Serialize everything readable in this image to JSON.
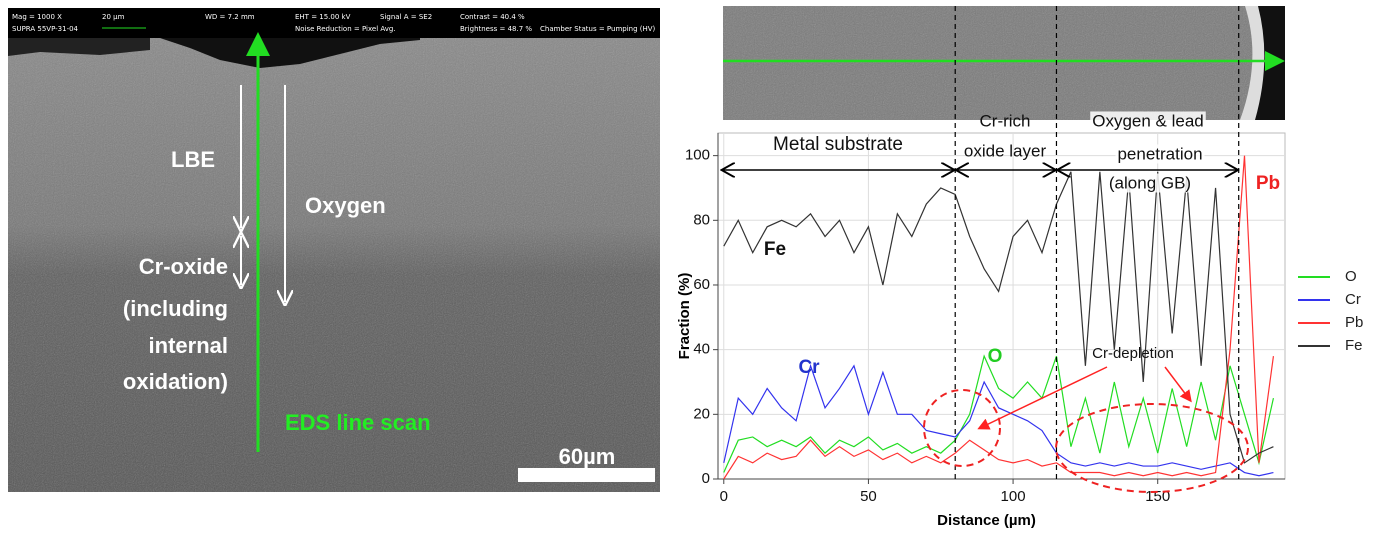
{
  "sem_image": {
    "info": [
      "Mag =  1000 X",
      "SUPRA 55VP-31-04",
      "20 µm",
      "WD =  7.2 mm",
      "EHT = 15.00 kV",
      "Noise Reduction = Pixel Avg.",
      "Signal A = SE2",
      "Contrast = 40.4 %",
      "Brightness = 48.7 %",
      "Chamber Status = Pumping (HV)"
    ],
    "labels": [
      "LBE",
      "Oxygen",
      "Cr-oxide",
      "(including",
      "internal",
      "oxidation)",
      "EDS line scan"
    ],
    "scale_bar": "60µm"
  },
  "chart_data": {
    "type": "line",
    "xlabel": "Distance (µm)",
    "ylabel": "Fraction (%)",
    "x": [
      0,
      5,
      10,
      15,
      20,
      25,
      30,
      35,
      40,
      45,
      50,
      55,
      60,
      65,
      70,
      75,
      80,
      85,
      90,
      95,
      100,
      105,
      110,
      115,
      120,
      125,
      130,
      135,
      140,
      145,
      150,
      155,
      160,
      165,
      170,
      175,
      180,
      185,
      190
    ],
    "series": [
      {
        "name": "O",
        "color": "#22dd22",
        "values": [
          2,
          12,
          13,
          10,
          12,
          10,
          13,
          8,
          12,
          10,
          13,
          9,
          11,
          8,
          10,
          8,
          12,
          20,
          38,
          28,
          25,
          30,
          25,
          38,
          10,
          25,
          8,
          30,
          10,
          25,
          8,
          28,
          10,
          30,
          12,
          35,
          20,
          5,
          25
        ]
      },
      {
        "name": "Cr",
        "color": "#3333ee",
        "values": [
          5,
          25,
          20,
          28,
          22,
          18,
          35,
          22,
          28,
          35,
          20,
          33,
          20,
          20,
          15,
          14,
          13,
          18,
          30,
          22,
          20,
          18,
          15,
          8,
          5,
          4,
          5,
          4,
          5,
          4,
          4,
          5,
          4,
          3,
          4,
          5,
          2,
          1,
          2
        ]
      },
      {
        "name": "Pb",
        "color": "#ff3333",
        "values": [
          0,
          7,
          5,
          8,
          6,
          7,
          12,
          7,
          10,
          7,
          9,
          6,
          8,
          5,
          7,
          5,
          8,
          12,
          9,
          6,
          5,
          6,
          4,
          5,
          2,
          2,
          2,
          1,
          2,
          1,
          2,
          1,
          2,
          1,
          2,
          40,
          100,
          5,
          38
        ]
      },
      {
        "name": "Fe",
        "color": "#333333",
        "values": [
          72,
          80,
          70,
          78,
          80,
          78,
          82,
          75,
          80,
          70,
          78,
          60,
          82,
          75,
          85,
          90,
          88,
          75,
          65,
          58,
          75,
          80,
          70,
          85,
          95,
          35,
          95,
          40,
          93,
          30,
          95,
          45,
          93,
          35,
          90,
          20,
          5,
          8,
          10
        ]
      }
    ],
    "xlim": [
      -2,
      194
    ],
    "xticks": [
      0,
      50,
      100,
      150
    ],
    "ylim": [
      0,
      107
    ],
    "yticks": [
      0,
      20,
      40,
      60,
      80,
      100
    ],
    "grid": true,
    "legend": "right",
    "boundaries": [
      80,
      115,
      178
    ],
    "annotations": [
      "Metal substrate",
      "Cr-rich",
      "oxide layer",
      "Oxygen & lead",
      "penetration",
      "(along GB)",
      "Fe",
      "Cr",
      "O",
      "Pb",
      "Cr-depletion"
    ]
  }
}
